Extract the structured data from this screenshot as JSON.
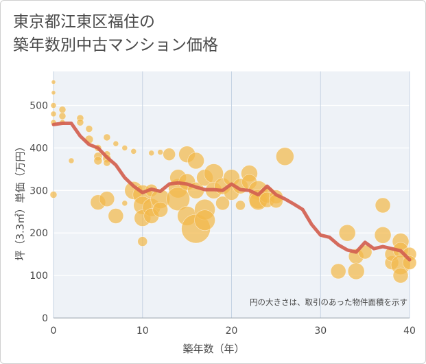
{
  "title_line1": "東京都江東区福住の",
  "title_line2": "築年数別中古マンション価格",
  "note": "円の大きさは、取引のあった物件面積を示す",
  "chart_data": {
    "type": "scatter",
    "xlabel": "築年数（年）",
    "ylabel": "坪（3.3㎡）単価（万円）",
    "xlim": [
      0,
      40
    ],
    "ylim": [
      0,
      580
    ],
    "xticks": [
      0,
      10,
      20,
      30,
      40
    ],
    "yticks": [
      0,
      100,
      200,
      300,
      400,
      500
    ],
    "grid": true,
    "colors": {
      "bubble": "#f2b84b",
      "line": "#d2604f"
    },
    "trend_line": {
      "x": [
        0,
        1,
        2,
        3,
        4,
        5,
        6,
        7,
        8,
        9,
        10,
        11,
        12,
        13,
        14,
        15,
        16,
        17,
        18,
        19,
        20,
        21,
        22,
        23,
        24,
        25,
        26,
        27,
        28,
        29,
        30,
        31,
        32,
        33,
        34,
        35,
        36,
        37,
        38,
        39,
        40
      ],
      "y": [
        455,
        458,
        458,
        428,
        408,
        400,
        378,
        360,
        330,
        310,
        295,
        303,
        298,
        315,
        318,
        315,
        308,
        302,
        302,
        300,
        315,
        302,
        300,
        290,
        310,
        290,
        280,
        268,
        255,
        220,
        195,
        190,
        172,
        160,
        155,
        178,
        163,
        168,
        163,
        158,
        137
      ]
    },
    "bubbles": [
      {
        "x": 0,
        "y": 555,
        "s": 3
      },
      {
        "x": 0,
        "y": 530,
        "s": 3
      },
      {
        "x": 0,
        "y": 500,
        "s": 4
      },
      {
        "x": 0,
        "y": 480,
        "s": 4
      },
      {
        "x": 0,
        "y": 460,
        "s": 4
      },
      {
        "x": 0,
        "y": 290,
        "s": 5
      },
      {
        "x": 1,
        "y": 490,
        "s": 5
      },
      {
        "x": 1,
        "y": 475,
        "s": 5
      },
      {
        "x": 1,
        "y": 460,
        "s": 4
      },
      {
        "x": 2,
        "y": 370,
        "s": 4
      },
      {
        "x": 3,
        "y": 470,
        "s": 5
      },
      {
        "x": 3,
        "y": 460,
        "s": 5
      },
      {
        "x": 4,
        "y": 445,
        "s": 5
      },
      {
        "x": 4,
        "y": 420,
        "s": 6
      },
      {
        "x": 5,
        "y": 400,
        "s": 5
      },
      {
        "x": 5,
        "y": 380,
        "s": 6
      },
      {
        "x": 5,
        "y": 370,
        "s": 6
      },
      {
        "x": 6,
        "y": 425,
        "s": 5
      },
      {
        "x": 6,
        "y": 385,
        "s": 5
      },
      {
        "x": 6,
        "y": 375,
        "s": 6
      },
      {
        "x": 6,
        "y": 365,
        "s": 5
      },
      {
        "x": 5,
        "y": 272,
        "s": 11
      },
      {
        "x": 6,
        "y": 280,
        "s": 11
      },
      {
        "x": 7,
        "y": 410,
        "s": 4
      },
      {
        "x": 7,
        "y": 240,
        "s": 11
      },
      {
        "x": 8,
        "y": 400,
        "s": 4
      },
      {
        "x": 8,
        "y": 270,
        "s": 4
      },
      {
        "x": 9,
        "y": 392,
        "s": 4
      },
      {
        "x": 9,
        "y": 300,
        "s": 13
      },
      {
        "x": 10,
        "y": 180,
        "s": 7
      },
      {
        "x": 10,
        "y": 290,
        "s": 14
      },
      {
        "x": 10,
        "y": 265,
        "s": 13
      },
      {
        "x": 10,
        "y": 235,
        "s": 12
      },
      {
        "x": 11,
        "y": 300,
        "s": 9
      },
      {
        "x": 11,
        "y": 260,
        "s": 13
      },
      {
        "x": 11,
        "y": 240,
        "s": 11
      },
      {
        "x": 11,
        "y": 388,
        "s": 4
      },
      {
        "x": 12,
        "y": 390,
        "s": 4
      },
      {
        "x": 12,
        "y": 280,
        "s": 14
      },
      {
        "x": 12,
        "y": 255,
        "s": 11
      },
      {
        "x": 13,
        "y": 385,
        "s": 9
      },
      {
        "x": 14,
        "y": 305,
        "s": 14
      },
      {
        "x": 14,
        "y": 330,
        "s": 12
      },
      {
        "x": 14,
        "y": 280,
        "s": 17
      },
      {
        "x": 15,
        "y": 385,
        "s": 12
      },
      {
        "x": 15,
        "y": 320,
        "s": 12
      },
      {
        "x": 15,
        "y": 240,
        "s": 14
      },
      {
        "x": 16,
        "y": 210,
        "s": 21
      },
      {
        "x": 16,
        "y": 370,
        "s": 12
      },
      {
        "x": 16,
        "y": 300,
        "s": 12
      },
      {
        "x": 17,
        "y": 255,
        "s": 15
      },
      {
        "x": 17,
        "y": 230,
        "s": 15
      },
      {
        "x": 17,
        "y": 330,
        "s": 12
      },
      {
        "x": 18,
        "y": 340,
        "s": 14
      },
      {
        "x": 18,
        "y": 300,
        "s": 12
      },
      {
        "x": 19,
        "y": 310,
        "s": 12
      },
      {
        "x": 19,
        "y": 270,
        "s": 10
      },
      {
        "x": 20,
        "y": 330,
        "s": 12
      },
      {
        "x": 20,
        "y": 295,
        "s": 11
      },
      {
        "x": 21,
        "y": 265,
        "s": 7
      },
      {
        "x": 21,
        "y": 310,
        "s": 11
      },
      {
        "x": 22,
        "y": 340,
        "s": 12
      },
      {
        "x": 22,
        "y": 320,
        "s": 11
      },
      {
        "x": 23,
        "y": 300,
        "s": 14
      },
      {
        "x": 23,
        "y": 280,
        "s": 14
      },
      {
        "x": 23,
        "y": 275,
        "s": 13
      },
      {
        "x": 24,
        "y": 290,
        "s": 12
      },
      {
        "x": 24,
        "y": 278,
        "s": 11
      },
      {
        "x": 25,
        "y": 285,
        "s": 10
      },
      {
        "x": 25,
        "y": 275,
        "s": 10
      },
      {
        "x": 26,
        "y": 380,
        "s": 13
      },
      {
        "x": 32,
        "y": 110,
        "s": 11
      },
      {
        "x": 33,
        "y": 200,
        "s": 12
      },
      {
        "x": 34,
        "y": 145,
        "s": 11
      },
      {
        "x": 34,
        "y": 110,
        "s": 12
      },
      {
        "x": 35,
        "y": 155,
        "s": 10
      },
      {
        "x": 37,
        "y": 265,
        "s": 11
      },
      {
        "x": 37,
        "y": 195,
        "s": 12
      },
      {
        "x": 38,
        "y": 130,
        "s": 10
      },
      {
        "x": 38,
        "y": 150,
        "s": 10
      },
      {
        "x": 39,
        "y": 180,
        "s": 12
      },
      {
        "x": 39,
        "y": 160,
        "s": 11
      },
      {
        "x": 39,
        "y": 125,
        "s": 14
      },
      {
        "x": 39,
        "y": 100,
        "s": 11
      },
      {
        "x": 40,
        "y": 150,
        "s": 10
      },
      {
        "x": 40,
        "y": 130,
        "s": 10
      }
    ]
  }
}
